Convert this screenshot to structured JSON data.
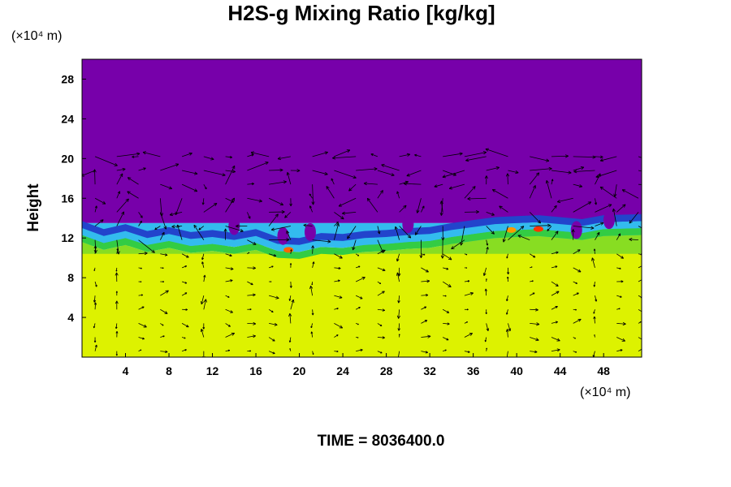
{
  "chart_data": {
    "type": "heatmap",
    "title": "H2S-g Mixing Ratio [kg/kg]",
    "xlabel": "",
    "ylabel": "Height",
    "x_unit": "(×10⁴ m)",
    "y_unit": "(×10⁴ m)",
    "xlim": [
      0,
      51.5
    ],
    "ylim": [
      0,
      30
    ],
    "x_ticks": [
      4,
      8,
      12,
      16,
      20,
      24,
      28,
      32,
      36,
      40,
      44,
      48
    ],
    "y_ticks": [
      4,
      8,
      12,
      16,
      20,
      24,
      28
    ],
    "time_label": "TIME = 8036400.0",
    "field_layers": [
      {
        "name": "upper",
        "y_range": [
          13.5,
          30
        ],
        "color": "#7700aa"
      },
      {
        "name": "interface",
        "y_range": [
          11.2,
          13.5
        ],
        "color": "#33bbee"
      },
      {
        "name": "lower",
        "y_range": [
          0,
          10.5
        ],
        "color": "#ddf200"
      }
    ],
    "interface_height": [
      [
        0,
        13.2
      ],
      [
        2,
        12.4
      ],
      [
        4,
        12.9
      ],
      [
        6,
        12.2
      ],
      [
        8,
        12.6
      ],
      [
        10,
        12.1
      ],
      [
        12,
        12.3
      ],
      [
        14,
        12.0
      ],
      [
        16,
        12.4
      ],
      [
        18,
        11.6
      ],
      [
        20,
        11.5
      ],
      [
        22,
        12.0
      ],
      [
        24,
        11.9
      ],
      [
        26,
        12.2
      ],
      [
        28,
        12.3
      ],
      [
        30,
        12.5
      ],
      [
        32,
        12.6
      ],
      [
        34,
        13.0
      ],
      [
        36,
        13.3
      ],
      [
        38,
        13.6
      ],
      [
        40,
        13.7
      ],
      [
        42,
        13.8
      ],
      [
        44,
        13.6
      ],
      [
        46,
        13.4
      ],
      [
        48,
        13.8
      ],
      [
        51.5,
        13.9
      ]
    ],
    "hotspots": [
      {
        "x": 19,
        "y": 10.8,
        "color": "#ff6600"
      },
      {
        "x": 39.5,
        "y": 12.8,
        "color": "#ff9900"
      },
      {
        "x": 42,
        "y": 12.9,
        "color": "#ff3300"
      }
    ],
    "vector_field": {
      "x_spacing": 2,
      "y_spacing": 1.4,
      "vector_color": "#000000"
    }
  }
}
